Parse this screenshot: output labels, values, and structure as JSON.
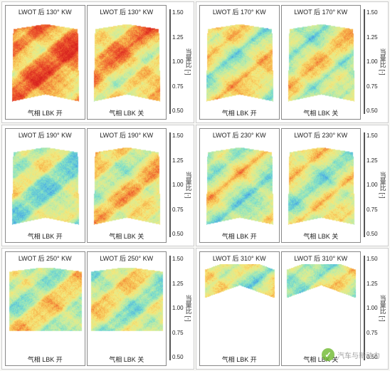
{
  "figure": {
    "background": "#f8f8f6",
    "panel_border": "#cccccc",
    "subpanel_border": "#888888",
    "colormap": {
      "stops": [
        "#2b2b8f",
        "#3a4fdc",
        "#4fb3e3",
        "#7fe0c9",
        "#c9eda0",
        "#f7e87a",
        "#f7b24a",
        "#ee5a2e",
        "#d8221f"
      ],
      "ticks": [
        "1.50",
        "1.25",
        "1.00",
        "0.75",
        "0.50"
      ],
      "axis_label": "当量比 [-]",
      "tick_fontsize": 8,
      "label_fontsize": 9
    },
    "panels": [
      {
        "row": 0,
        "col": 0,
        "angle": "130",
        "left_dom": 0.85,
        "right_dom": 0.7,
        "shape": "narrow"
      },
      {
        "row": 0,
        "col": 1,
        "angle": "170",
        "left_dom": 0.55,
        "right_dom": 0.5,
        "shape": "narrow"
      },
      {
        "row": 1,
        "col": 0,
        "angle": "190",
        "left_dom": 0.4,
        "right_dom": 0.6,
        "shape": "narrow"
      },
      {
        "row": 1,
        "col": 1,
        "angle": "230",
        "left_dom": 0.45,
        "right_dom": 0.5,
        "shape": "narrow"
      },
      {
        "row": 2,
        "col": 0,
        "angle": "250",
        "left_dom": 0.5,
        "right_dom": 0.48,
        "shape": "wide"
      },
      {
        "row": 2,
        "col": 1,
        "angle": "310",
        "left_dom": 0.5,
        "right_dom": 0.48,
        "shape": "vee"
      }
    ],
    "title_prefix": "LWOT 后 ",
    "title_suffix": "° KW",
    "footer_left": "气相  LBK 开",
    "footer_right": "气相  LBK 关",
    "title_fontsize": 9,
    "footer_fontsize": 9
  },
  "watermark": {
    "text": "汽车与新动力",
    "icon_bg": "#6fb92f",
    "text_color": "#888888"
  }
}
